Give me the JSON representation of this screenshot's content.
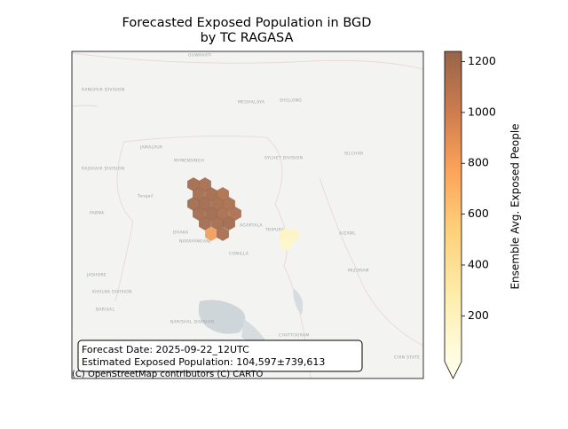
{
  "title": [
    "Forecasted Exposed Population in BGD",
    "by TC RAGASA"
  ],
  "colorbar": {
    "label": "Ensemble Avg. Exposed People",
    "lim": [
      20,
      1240
    ],
    "ticks": [
      200,
      400,
      600,
      800,
      1000,
      1200
    ]
  },
  "hexbins": {
    "values": [
      1200,
      1180,
      1190,
      1200,
      1150,
      1200,
      1210,
      1190,
      1170,
      1200,
      1220,
      1180,
      1160,
      1200,
      1190,
      1210,
      820,
      1180,
      180,
      160,
      140
    ]
  },
  "places": [
    "GUWAHATI",
    "RANGPUR DIVISION",
    "MEGHALAYA",
    "SHILLONG",
    "SYLHET DIVISION",
    "SILCHAR",
    "JAMALPUR",
    "MYMENSINGH",
    "RAJSHAHI DIVISION",
    "Tangail",
    "PABNA",
    "DHAKA",
    "NARAYANGANJ",
    "TRIPURA",
    "AGARTALA",
    "AIZAWL",
    "COMILLA",
    "JASHORE",
    "KHULNA DIVISION",
    "MIZORAM",
    "BARISAL",
    "BARISHAL DIVISION",
    "CHATTOGRAM",
    "CHIN STATE"
  ],
  "annotation": [
    "Forecast Date: 2025-09-22_12UTC",
    "Estimated Exposed Population: 104,597±739,613"
  ],
  "attribution": "(C) OpenStreetMap contributors (C) CARTO"
}
